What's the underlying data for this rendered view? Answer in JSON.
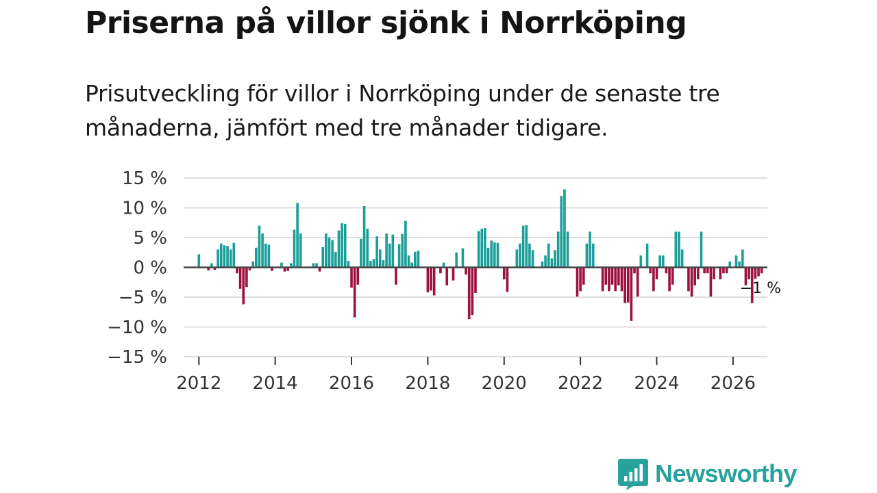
{
  "title": "Priserna på villor sjönk i Norrköping",
  "subtitle": "Prisutveckling för villor i Norrköping under de senaste tre månaderna, jämfört med tre månader tidigare.",
  "brand": {
    "name": "Newsworthy",
    "icon": "newsworthy-logo-icon"
  },
  "colors": {
    "positive": "#1a9e98",
    "negative": "#9c1140",
    "zero_line": "#444444",
    "grid": "#dddddd",
    "brand": "#27a39b"
  },
  "chart_data": {
    "type": "bar",
    "title": "Priserna på villor sjönk i Norrköping",
    "xlabel": "",
    "ylabel": "",
    "x_start": 2012.0,
    "x_step_months": 1,
    "ylim": [
      -15,
      15
    ],
    "xlim": [
      2011.6,
      2026.9
    ],
    "y_ticks": [
      15,
      10,
      5,
      0,
      -5,
      -10,
      -15
    ],
    "y_tick_labels": [
      "15 %",
      "10 %",
      "5 %",
      "0 %",
      "−5 %",
      "−10 %",
      "−15 %"
    ],
    "x_ticks": [
      2012,
      2014,
      2016,
      2018,
      2020,
      2022,
      2024,
      2026
    ],
    "x_tick_labels": [
      "2012",
      "2014",
      "2016",
      "2018",
      "2020",
      "2022",
      "2024",
      "2026"
    ],
    "grid": true,
    "end_label": "−1 %",
    "values": [
      2.2,
      0,
      0,
      -0.5,
      0.7,
      -0.4,
      3.0,
      4.0,
      3.7,
      3.6,
      3.0,
      4.1,
      -1.0,
      -3.6,
      -6.2,
      -3.3,
      -0.5,
      1.0,
      3.3,
      7.0,
      5.7,
      4.0,
      3.8,
      -0.6,
      0,
      0,
      0.8,
      -0.7,
      -0.6,
      0.7,
      6.3,
      10.8,
      5.7,
      0,
      0,
      0,
      0.7,
      0.7,
      -0.7,
      3.4,
      5.7,
      5.0,
      4.6,
      2.6,
      6.2,
      7.4,
      7.3,
      1.1,
      -3.4,
      -8.4,
      -2.9,
      4.8,
      10.3,
      6.5,
      1.1,
      1.4,
      5.2,
      3.0,
      1.2,
      5.7,
      4.0,
      5.5,
      -2.9,
      3.9,
      5.6,
      7.8,
      2.0,
      0.8,
      2.6,
      2.8,
      0,
      0,
      -4.2,
      -3.9,
      -4.7,
      0,
      -1.0,
      0.8,
      -3.0,
      0,
      -2.2,
      2.5,
      0,
      3.2,
      -1.2,
      -8.7,
      -8.0,
      -4.3,
      6.1,
      6.5,
      6.6,
      3.3,
      4.5,
      4.2,
      4.1,
      0,
      -2.0,
      -4.1,
      0,
      0,
      3.0,
      4.0,
      7.0,
      7.1,
      4.0,
      2.9,
      0,
      0,
      1.0,
      2.0,
      4.0,
      1.5,
      2.9,
      6.0,
      12.0,
      13.1,
      6.0,
      0,
      0,
      -4.9,
      -4.0,
      -2.9,
      4.0,
      6.0,
      4.0,
      0,
      0,
      -4.0,
      -2.9,
      -4.0,
      -2.9,
      -4.0,
      -3.0,
      -4.0,
      -6.0,
      -5.9,
      -9.0,
      -1.0,
      -4.9,
      2.0,
      0,
      4.0,
      -1.0,
      -4.0,
      -2.0,
      2.0,
      2.0,
      -1.0,
      -4.0,
      -2.9,
      6.0,
      6.0,
      3.0,
      0,
      -4.0,
      -4.9,
      -3.0,
      -2.0,
      6.0,
      -1.0,
      -1.0,
      -4.9,
      -2.0,
      0,
      -2.0,
      -1.0,
      -1.0,
      1.0,
      0,
      2.0,
      1.0,
      3.0,
      -3.0,
      -2.0,
      -6.0,
      -1.9,
      -1.5,
      -1.0
    ]
  }
}
